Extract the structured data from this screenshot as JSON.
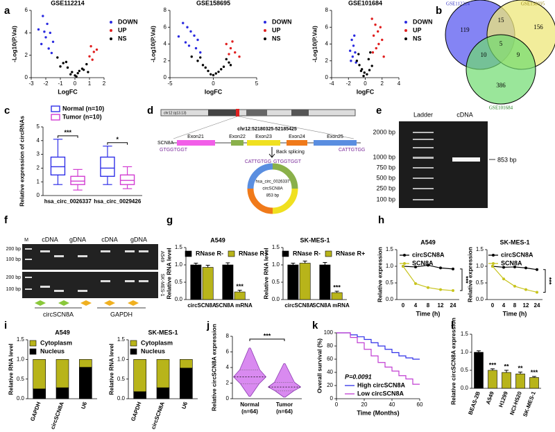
{
  "panel_labels": [
    "a",
    "b",
    "c",
    "d",
    "e",
    "f",
    "g",
    "h",
    "i",
    "j",
    "k",
    "l"
  ],
  "venn": {
    "sets": [
      {
        "name": "GSE112214",
        "color": "#6f6ff2"
      },
      {
        "name": "GSE158695",
        "color": "#eee77a"
      },
      {
        "name": "GSE101684",
        "color": "#6fdc6f"
      }
    ],
    "regions": {
      "first_only": 119,
      "second_only": 156,
      "third_only": 386,
      "first_second": 15,
      "first_third": 10,
      "second_third": 9,
      "all": 5
    }
  },
  "diagram": {
    "chromosome": "chr12 (q13.13)",
    "locus": "chr12:52180325-52185425",
    "gene": "SCN8A",
    "exons": [
      "Exon21",
      "Exon22",
      "Exon23",
      "Exon24",
      "Exon25"
    ],
    "left_seq": "GTGGTGGT",
    "right_seq": "CATTGTGG",
    "step": "Back splicing",
    "circ_left": "CATTGTGG",
    "circ_right": "GTGGTGGT",
    "circ_id": "hsa_circ_0026337",
    "circ_name": "circSCN8A",
    "circ_size": "853 bp"
  },
  "gel_e": {
    "lanes": [
      "Ladder",
      "cDNA"
    ],
    "ladder": [
      "2000 bp",
      "1000 bp",
      "750 bp",
      "500 bp",
      "250 bp",
      "100 bp"
    ],
    "band": "853 bp"
  },
  "gel_f": {
    "marker": "M",
    "lanes": [
      "cDNA",
      "gDNA",
      "cDNA",
      "gDNA"
    ],
    "sizes": [
      "200 bp",
      "100 bp",
      "200 bp",
      "100 bp"
    ],
    "cells": [
      "A549",
      "SK-MES-1"
    ],
    "genes": [
      "circSCN8A",
      "GAPDH"
    ]
  },
  "chart_data": [
    {
      "type": "scatter",
      "title": "GSE112214",
      "xlabel": "LogFC",
      "ylabel": "-Log10(P.Val)",
      "xlim": [
        -3,
        2
      ],
      "xticks": [
        -3,
        -2,
        -1,
        0,
        1,
        2
      ],
      "ylim": [
        0,
        6
      ],
      "yticks": [
        0,
        2,
        4,
        6
      ],
      "series": [
        {
          "name": "DOWN",
          "color": "#2b2be0",
          "x": [
            -2.2,
            -1.9,
            -2.5,
            -1.7,
            -2.0,
            -1.5,
            -2.3,
            -1.8,
            -1.6,
            -2.1
          ],
          "values": [
            5.5,
            4.8,
            4.3,
            4.0,
            3.6,
            3.2,
            3.0,
            2.6,
            2.2,
            4.1
          ]
        },
        {
          "name": "UP",
          "color": "#e02020",
          "x": [
            1.1,
            1.3,
            1.0,
            1.5,
            1.2
          ],
          "values": [
            2.8,
            2.3,
            1.9,
            2.5,
            1.6
          ]
        },
        {
          "name": "NS",
          "color": "#000000",
          "x": [
            -1.2,
            -0.8,
            -0.5,
            -0.2,
            0,
            0.2,
            0.5,
            0.8,
            -1.0,
            -0.3,
            0.3,
            0.6,
            -0.6,
            0.1,
            0.9
          ],
          "values": [
            1.8,
            1.3,
            0.9,
            0.5,
            0.2,
            0.4,
            0.8,
            1.2,
            1.0,
            0.3,
            0.6,
            0.7,
            1.4,
            0.1,
            0.5
          ]
        }
      ]
    },
    {
      "type": "scatter",
      "title": "GSE158695",
      "xlabel": "logFC",
      "ylabel": "-Log10(P.Val)",
      "xlim": [
        -5,
        5
      ],
      "xticks": [
        -5,
        0,
        5
      ],
      "ylim": [
        0,
        8
      ],
      "yticks": [
        0,
        2,
        4,
        6,
        8
      ],
      "series": [
        {
          "name": "DOWN",
          "color": "#2b2be0",
          "x": [
            -3.5,
            -3.0,
            -2.6,
            -2.2,
            -1.8,
            -3.2,
            -2.8,
            -2.0,
            -1.5,
            -4.0
          ],
          "values": [
            6.5,
            6.0,
            5.5,
            5.0,
            4.5,
            4.2,
            3.8,
            3.5,
            3.0,
            4.9
          ]
        },
        {
          "name": "UP",
          "color": "#e02020",
          "x": [
            1.5,
            2.0,
            2.5,
            1.8,
            2.2,
            3.0
          ],
          "values": [
            4.0,
            3.5,
            3.0,
            2.8,
            4.3,
            2.5
          ]
        },
        {
          "name": "NS",
          "color": "#000000",
          "x": [
            -2.5,
            -1.8,
            -1.2,
            -0.6,
            0,
            0.6,
            1.2,
            1.8,
            -1.5,
            -0.3,
            0.3,
            0.9,
            -0.9,
            1.5,
            2.0
          ],
          "values": [
            2.5,
            2.0,
            1.5,
            0.8,
            0.3,
            0.7,
            1.3,
            1.8,
            2.4,
            0.4,
            0.5,
            1.0,
            1.2,
            2.2,
            1.5
          ]
        }
      ]
    },
    {
      "type": "scatter",
      "title": "GSE101684",
      "xlabel": "logFC",
      "ylabel": "-Log10(P.Val)",
      "xlim": [
        -4,
        4
      ],
      "xticks": [
        -4,
        -2,
        0,
        2,
        4
      ],
      "ylim": [
        0,
        8
      ],
      "yticks": [
        0,
        2,
        4,
        6,
        8
      ],
      "series": [
        {
          "name": "DOWN",
          "color": "#2b2be0",
          "x": [
            -1.6,
            -1.4,
            -1.8,
            -1.2,
            -1.5,
            -1.3,
            -1.7,
            -1.1
          ],
          "values": [
            4.5,
            3.8,
            3.2,
            3.0,
            2.5,
            5.0,
            2.0,
            1.8
          ]
        },
        {
          "name": "UP",
          "color": "#e02020",
          "x": [
            0.8,
            1.2,
            1.5,
            1.0,
            2.0,
            1.6,
            1.3,
            0.9,
            2.2,
            1.8
          ],
          "values": [
            7.0,
            6.3,
            5.5,
            5.0,
            4.5,
            4.0,
            3.5,
            3.0,
            2.5,
            6.0
          ]
        },
        {
          "name": "NS",
          "color": "#000000",
          "x": [
            -1.0,
            -0.7,
            -0.4,
            -0.1,
            0.2,
            0.5,
            0.8,
            -0.8,
            -0.2,
            0.4,
            0.6,
            -0.5
          ],
          "values": [
            2.0,
            1.5,
            1.0,
            0.6,
            0.4,
            0.9,
            1.4,
            2.8,
            0.2,
            2.2,
            3.0,
            0.8
          ]
        }
      ]
    },
    {
      "type": "box",
      "ylabel": "Relative expression of circRNAs",
      "categories": [
        "hsa_circ_0026337",
        "hsa_circ_0029426"
      ],
      "ylim": [
        0,
        5
      ],
      "yticks": [
        0,
        1,
        2,
        3,
        4,
        5
      ],
      "annotations": [
        "***",
        "*"
      ],
      "series": [
        {
          "name": "Normal (n=10)",
          "color": "#2f2fe8",
          "values": [
            {
              "min": 0.8,
              "q1": 1.5,
              "median": 2.1,
              "q3": 2.8,
              "max": 4.1
            },
            {
              "min": 0.8,
              "q1": 1.4,
              "median": 2.0,
              "q3": 2.8,
              "max": 3.6
            }
          ]
        },
        {
          "name": "Tumor (n=10)",
          "color": "#d23cd2",
          "values": [
            {
              "min": 0.4,
              "q1": 0.8,
              "median": 1.05,
              "q3": 1.4,
              "max": 1.9
            },
            {
              "min": 0.5,
              "q1": 0.8,
              "median": 1.1,
              "q3": 1.5,
              "max": 2.1
            }
          ]
        }
      ]
    },
    {
      "type": "bar",
      "title": "A549",
      "ylabel": "Relative RNA level",
      "categories": [
        "circSCN8A",
        "SCN8A mRNA"
      ],
      "ylim": [
        0,
        1.5
      ],
      "yticks": [
        {
          "value": 0,
          "label": "0.0"
        },
        0.5,
        {
          "value": 1,
          "label": "1.0"
        },
        1.5
      ],
      "annotations": [
        null,
        "***"
      ],
      "series": [
        {
          "name": "RNase R-",
          "color": "#000000",
          "values": [
            1.0,
            1.0
          ],
          "errors": [
            0.05,
            0.06
          ]
        },
        {
          "name": "RNase R+",
          "color": "#b8b41a",
          "values": [
            0.93,
            0.22
          ],
          "errors": [
            0.06,
            0.05
          ]
        }
      ]
    },
    {
      "type": "bar",
      "title": "SK-MES-1",
      "ylabel": "Relative RNA level",
      "categories": [
        "circSCN8A",
        "SCN8A mRNA"
      ],
      "ylim": [
        0,
        1.5
      ],
      "yticks": [
        {
          "value": 0,
          "label": "0.0"
        },
        0.5,
        {
          "value": 1,
          "label": "1.0"
        },
        1.5
      ],
      "annotations": [
        null,
        "***"
      ],
      "series": [
        {
          "name": "RNase R-",
          "color": "#000000",
          "values": [
            1.0,
            1.0
          ],
          "errors": [
            0.05,
            0.07
          ]
        },
        {
          "name": "RNase R+",
          "color": "#b8b41a",
          "values": [
            1.05,
            0.2
          ],
          "errors": [
            0.06,
            0.04
          ]
        }
      ]
    },
    {
      "type": "line",
      "title": "A549",
      "xlabel": "Time (h)",
      "ylabel": "Relative expression",
      "categories": [
        "0",
        "4",
        "8",
        "12",
        "24"
      ],
      "ylim": [
        0,
        1.5
      ],
      "yticks": [
        {
          "value": 0,
          "label": "0.0"
        },
        0.5,
        {
          "value": 1,
          "label": "1.0"
        },
        1.5
      ],
      "annotation": "***",
      "series": [
        {
          "name": "circSCN8A",
          "color": "#000000",
          "values": [
            1.0,
            0.98,
            1.03,
            0.95,
            0.92
          ]
        },
        {
          "name": "SCN8A",
          "color": "#c8c41e",
          "values": [
            1.0,
            0.48,
            0.36,
            0.3,
            0.27
          ]
        }
      ]
    },
    {
      "type": "line",
      "title": "SK-MES-1",
      "xlabel": "Time (h)",
      "ylabel": "Relative expression",
      "categories": [
        "0",
        "4",
        "8",
        "12",
        "24"
      ],
      "ylim": [
        0,
        1.5
      ],
      "yticks": [
        {
          "value": 0,
          "label": "0.0"
        },
        0.5,
        {
          "value": 1,
          "label": "1.0"
        },
        1.5
      ],
      "annotation": "***",
      "series": [
        {
          "name": "circSCN8A",
          "color": "#000000",
          "values": [
            1.0,
            0.97,
            0.98,
            0.95,
            0.9
          ]
        },
        {
          "name": "SCN8A",
          "color": "#c8c41e",
          "values": [
            1.0,
            0.62,
            0.4,
            0.3,
            0.22
          ]
        }
      ]
    },
    {
      "type": "bar",
      "stacked": true,
      "title": "A549",
      "ylabel": "Relative RNA level",
      "categories": [
        "GAPDH",
        "circSCN8A",
        "U6"
      ],
      "ylim": [
        0,
        1.5
      ],
      "yticks": [
        {
          "value": 0,
          "label": "0.0"
        },
        0.5,
        {
          "value": 1,
          "label": "1.0"
        },
        1.5
      ],
      "series": [
        {
          "name": "Nucleus",
          "color": "#000000",
          "values": [
            0.25,
            0.28,
            0.8
          ]
        },
        {
          "name": "Cytoplasm",
          "color": "#b8b41a",
          "values": [
            0.75,
            0.72,
            0.2
          ]
        }
      ]
    },
    {
      "type": "bar",
      "stacked": true,
      "title": "SK-MES-1",
      "ylabel": "Relative RNA level",
      "categories": [
        "GAPDH",
        "circSCN8A",
        "U6"
      ],
      "ylim": [
        0,
        1.5
      ],
      "yticks": [
        {
          "value": 0,
          "label": "0.0"
        },
        0.5,
        {
          "value": 1,
          "label": "1.0"
        },
        1.5
      ],
      "series": [
        {
          "name": "Nucleus",
          "color": "#000000",
          "values": [
            0.18,
            0.28,
            0.78
          ]
        },
        {
          "name": "Cytoplasm",
          "color": "#b8b41a",
          "values": [
            0.82,
            0.72,
            0.22
          ]
        }
      ]
    },
    {
      "type": "violin",
      "ylabel": "Relative circSCN8A expression",
      "categories": [
        "Normal",
        "Tumor"
      ],
      "sample_sizes": [
        "(n=64)",
        "(n=64)"
      ],
      "color": "#d98af0",
      "ylim": [
        0,
        8
      ],
      "yticks": [
        0,
        2,
        4,
        6,
        8
      ],
      "annotation": "***",
      "values": [
        {
          "min": 0.3,
          "q1": 1.9,
          "median": 2.8,
          "q3": 3.7,
          "max": 6.5
        },
        {
          "min": 0.2,
          "q1": 1.0,
          "median": 1.5,
          "q3": 2.1,
          "max": 4.5
        }
      ]
    },
    {
      "type": "step",
      "xlabel": "Time (Months)",
      "ylabel": "Overall survival (%)",
      "xlim": [
        0,
        60
      ],
      "xticks": [
        0,
        20,
        40,
        60
      ],
      "ylim": [
        0,
        100
      ],
      "yticks": [
        0,
        20,
        40,
        60,
        80,
        100
      ],
      "annotation": "P=0.0091",
      "series": [
        {
          "name": "High circSCN8A",
          "color": "#2f2fe8",
          "x": [
            0,
            10,
            15,
            20,
            25,
            30,
            35,
            40,
            45,
            50,
            55,
            60
          ],
          "values": [
            100,
            97,
            94,
            90,
            85,
            80,
            75,
            70,
            65,
            62,
            60,
            60
          ]
        },
        {
          "name": "Low circSCN8A",
          "color": "#c03cd2",
          "x": [
            0,
            10,
            15,
            20,
            25,
            30,
            35,
            40,
            45,
            50,
            55,
            60
          ],
          "values": [
            100,
            93,
            85,
            75,
            65,
            55,
            48,
            42,
            35,
            30,
            22,
            22
          ]
        }
      ]
    },
    {
      "type": "bar",
      "ylabel": "Relative circSCN8A expression",
      "categories": [
        "BEAS-2B",
        "A549",
        "H1299",
        "NCI-H520",
        "SK-MES-1"
      ],
      "ylim": [
        0,
        1.5
      ],
      "yticks": [
        {
          "value": 0,
          "label": "0.0"
        },
        0.5,
        {
          "value": 1,
          "label": "1.0"
        },
        1.5
      ],
      "colors": [
        "#000000",
        "#b8b41a",
        "#b8b41a",
        "#b8b41a",
        "#b8b41a"
      ],
      "values": [
        1.0,
        0.5,
        0.44,
        0.4,
        0.3
      ],
      "errors": [
        0.04,
        0.04,
        0.06,
        0.05,
        0.03
      ],
      "annotations": [
        null,
        "***",
        "**",
        "**",
        "***"
      ]
    }
  ]
}
